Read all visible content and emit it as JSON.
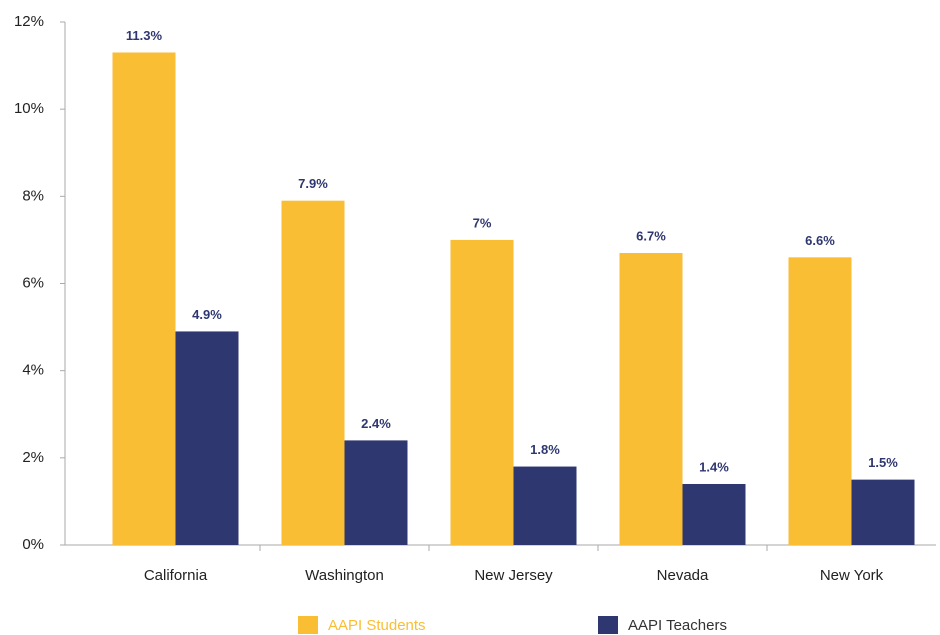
{
  "chart_data": {
    "type": "bar",
    "categories": [
      "California",
      "Washington",
      "New Jersey",
      "Nevada",
      "New York"
    ],
    "series": [
      {
        "name": "AAPI Students",
        "color": "#f9be34",
        "values": [
          11.3,
          7.9,
          7,
          6.7,
          6.6
        ],
        "value_labels": [
          "11.3%",
          "7.9%",
          "7%",
          "6.7%",
          "6.6%"
        ]
      },
      {
        "name": "AAPI Teachers",
        "color": "#2f3771",
        "values": [
          4.9,
          2.4,
          1.8,
          1.4,
          1.5
        ],
        "value_labels": [
          "4.9%",
          "2.4%",
          "1.8%",
          "1.4%",
          "1.5%"
        ]
      }
    ],
    "ylim": [
      0,
      12
    ],
    "yticks": [
      {
        "value": 0,
        "label": "0%"
      },
      {
        "value": 2,
        "label": "2%"
      },
      {
        "value": 4,
        "label": "4%"
      },
      {
        "value": 6,
        "label": "6%"
      },
      {
        "value": 8,
        "label": "8%"
      },
      {
        "value": 10,
        "label": "10%"
      },
      {
        "value": 12,
        "label": "12%"
      }
    ],
    "grid": false,
    "legend": "bottom"
  }
}
